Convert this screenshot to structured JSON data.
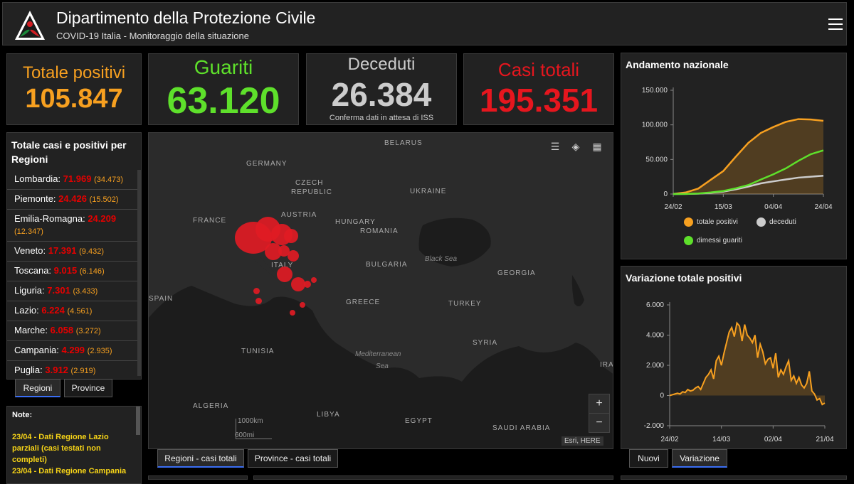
{
  "header": {
    "title": "Dipartimento della Protezione Civile",
    "subtitle": "COVID-19 Italia - Monitoraggio della situazione"
  },
  "stats": {
    "positivi": {
      "label": "Totale positivi",
      "value": "105.847",
      "color": "#f7a020"
    },
    "guariti": {
      "label": "Guariti",
      "value": "63.120",
      "color": "#5ee02b"
    },
    "deceduti": {
      "label": "Deceduti",
      "value": "26.384",
      "note": "Conferma dati in attesa di ISS",
      "color": "#cccccc"
    },
    "casi": {
      "label": "Casi totali",
      "value": "195.351",
      "color": "#e6161e"
    }
  },
  "regions": {
    "title": "Totale casi e positivi per Regioni",
    "items": [
      {
        "name": "Lombardia:",
        "value": "71.969",
        "pos": "(34.473)"
      },
      {
        "name": "Piemonte:",
        "value": "24.426",
        "pos": "(15.502)"
      },
      {
        "name": "Emilia-Romagna:",
        "value": "24.209",
        "pos": "(12.347)"
      },
      {
        "name": "Veneto:",
        "value": "17.391",
        "pos": "(9.432)"
      },
      {
        "name": "Toscana:",
        "value": "9.015",
        "pos": "(6.146)"
      },
      {
        "name": "Liguria:",
        "value": "7.301",
        "pos": "(3.433)"
      },
      {
        "name": "Lazio:",
        "value": "6.224",
        "pos": "(4.561)"
      },
      {
        "name": "Marche:",
        "value": "6.058",
        "pos": "(3.272)"
      },
      {
        "name": "Campania:",
        "value": "4.299",
        "pos": "(2.935)"
      },
      {
        "name": "Puglia:",
        "value": "3.912",
        "pos": "(2.919)"
      }
    ],
    "tabs": [
      "Regioni",
      "Province"
    ]
  },
  "notes": {
    "title": "Note:",
    "items": [
      "23/04 - Dati Regione Lazio parziali (casi testati non completi)",
      "23/04 - Dati Regione Campania"
    ]
  },
  "map": {
    "labels": [
      "BELARUS",
      "GERMANY",
      "CZECH",
      "REPUBLIC",
      "UKRAINE",
      "FRANCE",
      "AUSTRIA",
      "HUNGARY",
      "ROMANIA",
      "ITALY",
      "BULGARIA",
      "GEORGIA",
      "SPAIN",
      "GREECE",
      "TURKEY",
      "TUNISIA",
      "SYRIA",
      "IRA",
      "ALGERIA",
      "LIBYA",
      "EGYPT",
      "SAUDI ARABIA"
    ],
    "seas": {
      "black": "Black Sea",
      "med1": "Mediterranean",
      "med2": "Sea"
    },
    "scale_km": "1000km",
    "scale_mi": "600mi",
    "attribution": "Esri, HERE",
    "zoom_in": "+",
    "zoom_out": "−",
    "tabs": [
      "Regioni - casi totali",
      "Province - casi totali"
    ]
  },
  "chart1": {
    "title": "Andamento nazionale",
    "tabs_note": "",
    "legend": [
      "totale positivi",
      "deceduti",
      "dimessi guariti"
    ]
  },
  "chart2": {
    "title": "Variazione totale positivi",
    "tabs": [
      "Nuovi",
      "Variazione"
    ]
  },
  "chart_data": [
    {
      "type": "line",
      "title": "Andamento nazionale",
      "x_ticks": [
        "24/02",
        "15/03",
        "04/04",
        "24/04"
      ],
      "y_ticks": [
        "0",
        "50.000",
        "100.000",
        "150.000"
      ],
      "ylim": [
        0,
        150000
      ],
      "x": [
        "24/02",
        "03/03",
        "09/03",
        "15/03",
        "19/03",
        "24/03",
        "29/03",
        "04/04",
        "09/04",
        "14/04",
        "19/04",
        "22/04",
        "24/04"
      ],
      "series": [
        {
          "name": "totale positivi",
          "color": "#f7a020",
          "values": [
            200,
            2300,
            7900,
            20600,
            33200,
            54000,
            73900,
            88300,
            96900,
            104300,
            108300,
            107700,
            105800
          ]
        },
        {
          "name": "deceduti",
          "color": "#cccccc",
          "values": [
            7,
            80,
            460,
            1800,
            3400,
            6800,
            10800,
            15400,
            18300,
            21100,
            23700,
            25100,
            26400
          ]
        },
        {
          "name": "dimessi guariti",
          "color": "#5ee02b",
          "values": [
            1,
            160,
            720,
            2300,
            4400,
            8300,
            13000,
            20900,
            28500,
            37100,
            48000,
            57600,
            63100
          ]
        }
      ],
      "grid": false,
      "legend_position": "bottom"
    },
    {
      "type": "area",
      "title": "Variazione totale positivi",
      "x_ticks": [
        "24/02",
        "14/03",
        "02/04",
        "21/04"
      ],
      "y_ticks": [
        "-2.000",
        "0",
        "2.000",
        "4.000",
        "6.000"
      ],
      "ylim": [
        -2000,
        6000
      ],
      "series": [
        {
          "name": "Variazione",
          "color": "#f7a020",
          "values": [
            0,
            50,
            100,
            150,
            100,
            250,
            200,
            400,
            300,
            350,
            500,
            600,
            400,
            800,
            1200,
            1400,
            1700,
            1100,
            2300,
            2600,
            2000,
            2800,
            3500,
            4200,
            4500,
            3900,
            4800,
            4600,
            3600,
            4700,
            4000,
            3800,
            3500,
            4000,
            2500,
            3400,
            2900,
            2100,
            2400,
            2500,
            1800,
            2800,
            1200,
            1700,
            1400,
            1900,
            2300,
            1000,
            1300,
            800,
            1200,
            700,
            500,
            800,
            1600,
            300,
            100,
            -300,
            -200,
            -600,
            -500
          ]
        }
      ],
      "grid": false
    }
  ]
}
